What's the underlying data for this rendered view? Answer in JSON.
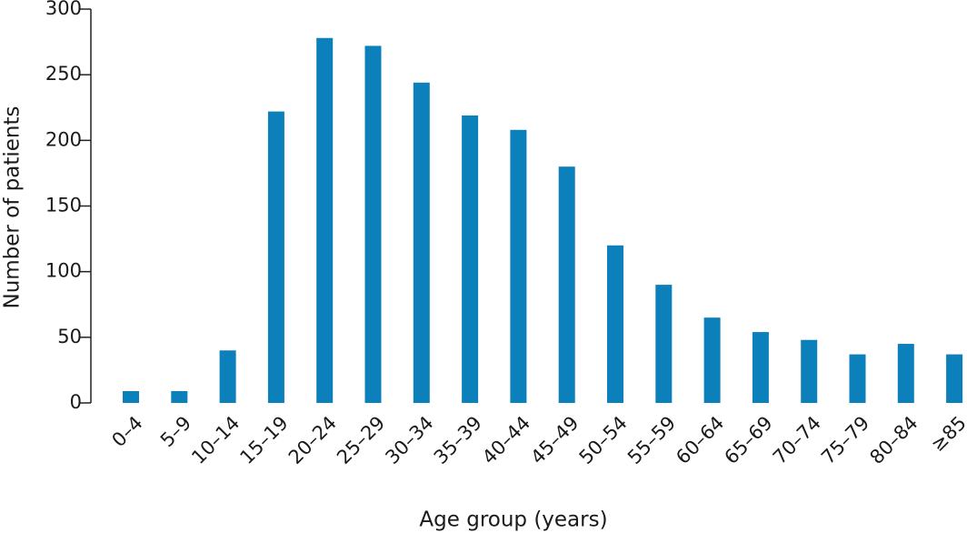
{
  "chart_data": {
    "type": "bar",
    "x_label": "Age group (years)",
    "y_label": "Number of patients",
    "categories": [
      "0–4",
      "5–9",
      "10–14",
      "15–19",
      "20–24",
      "25–29",
      "30–34",
      "35–39",
      "40–44",
      "45–49",
      "50–54",
      "55–59",
      "60–64",
      "65–69",
      "70–74",
      "75–79",
      "80–84",
      "≥85"
    ],
    "values": [
      9,
      9,
      40,
      222,
      278,
      272,
      244,
      219,
      208,
      180,
      120,
      90,
      65,
      54,
      48,
      37,
      45,
      37
    ],
    "color": "#0b80bb",
    "ylim": [
      0,
      300
    ],
    "yticks": [
      0,
      50,
      100,
      150,
      200,
      250,
      300
    ],
    "grid": false
  }
}
